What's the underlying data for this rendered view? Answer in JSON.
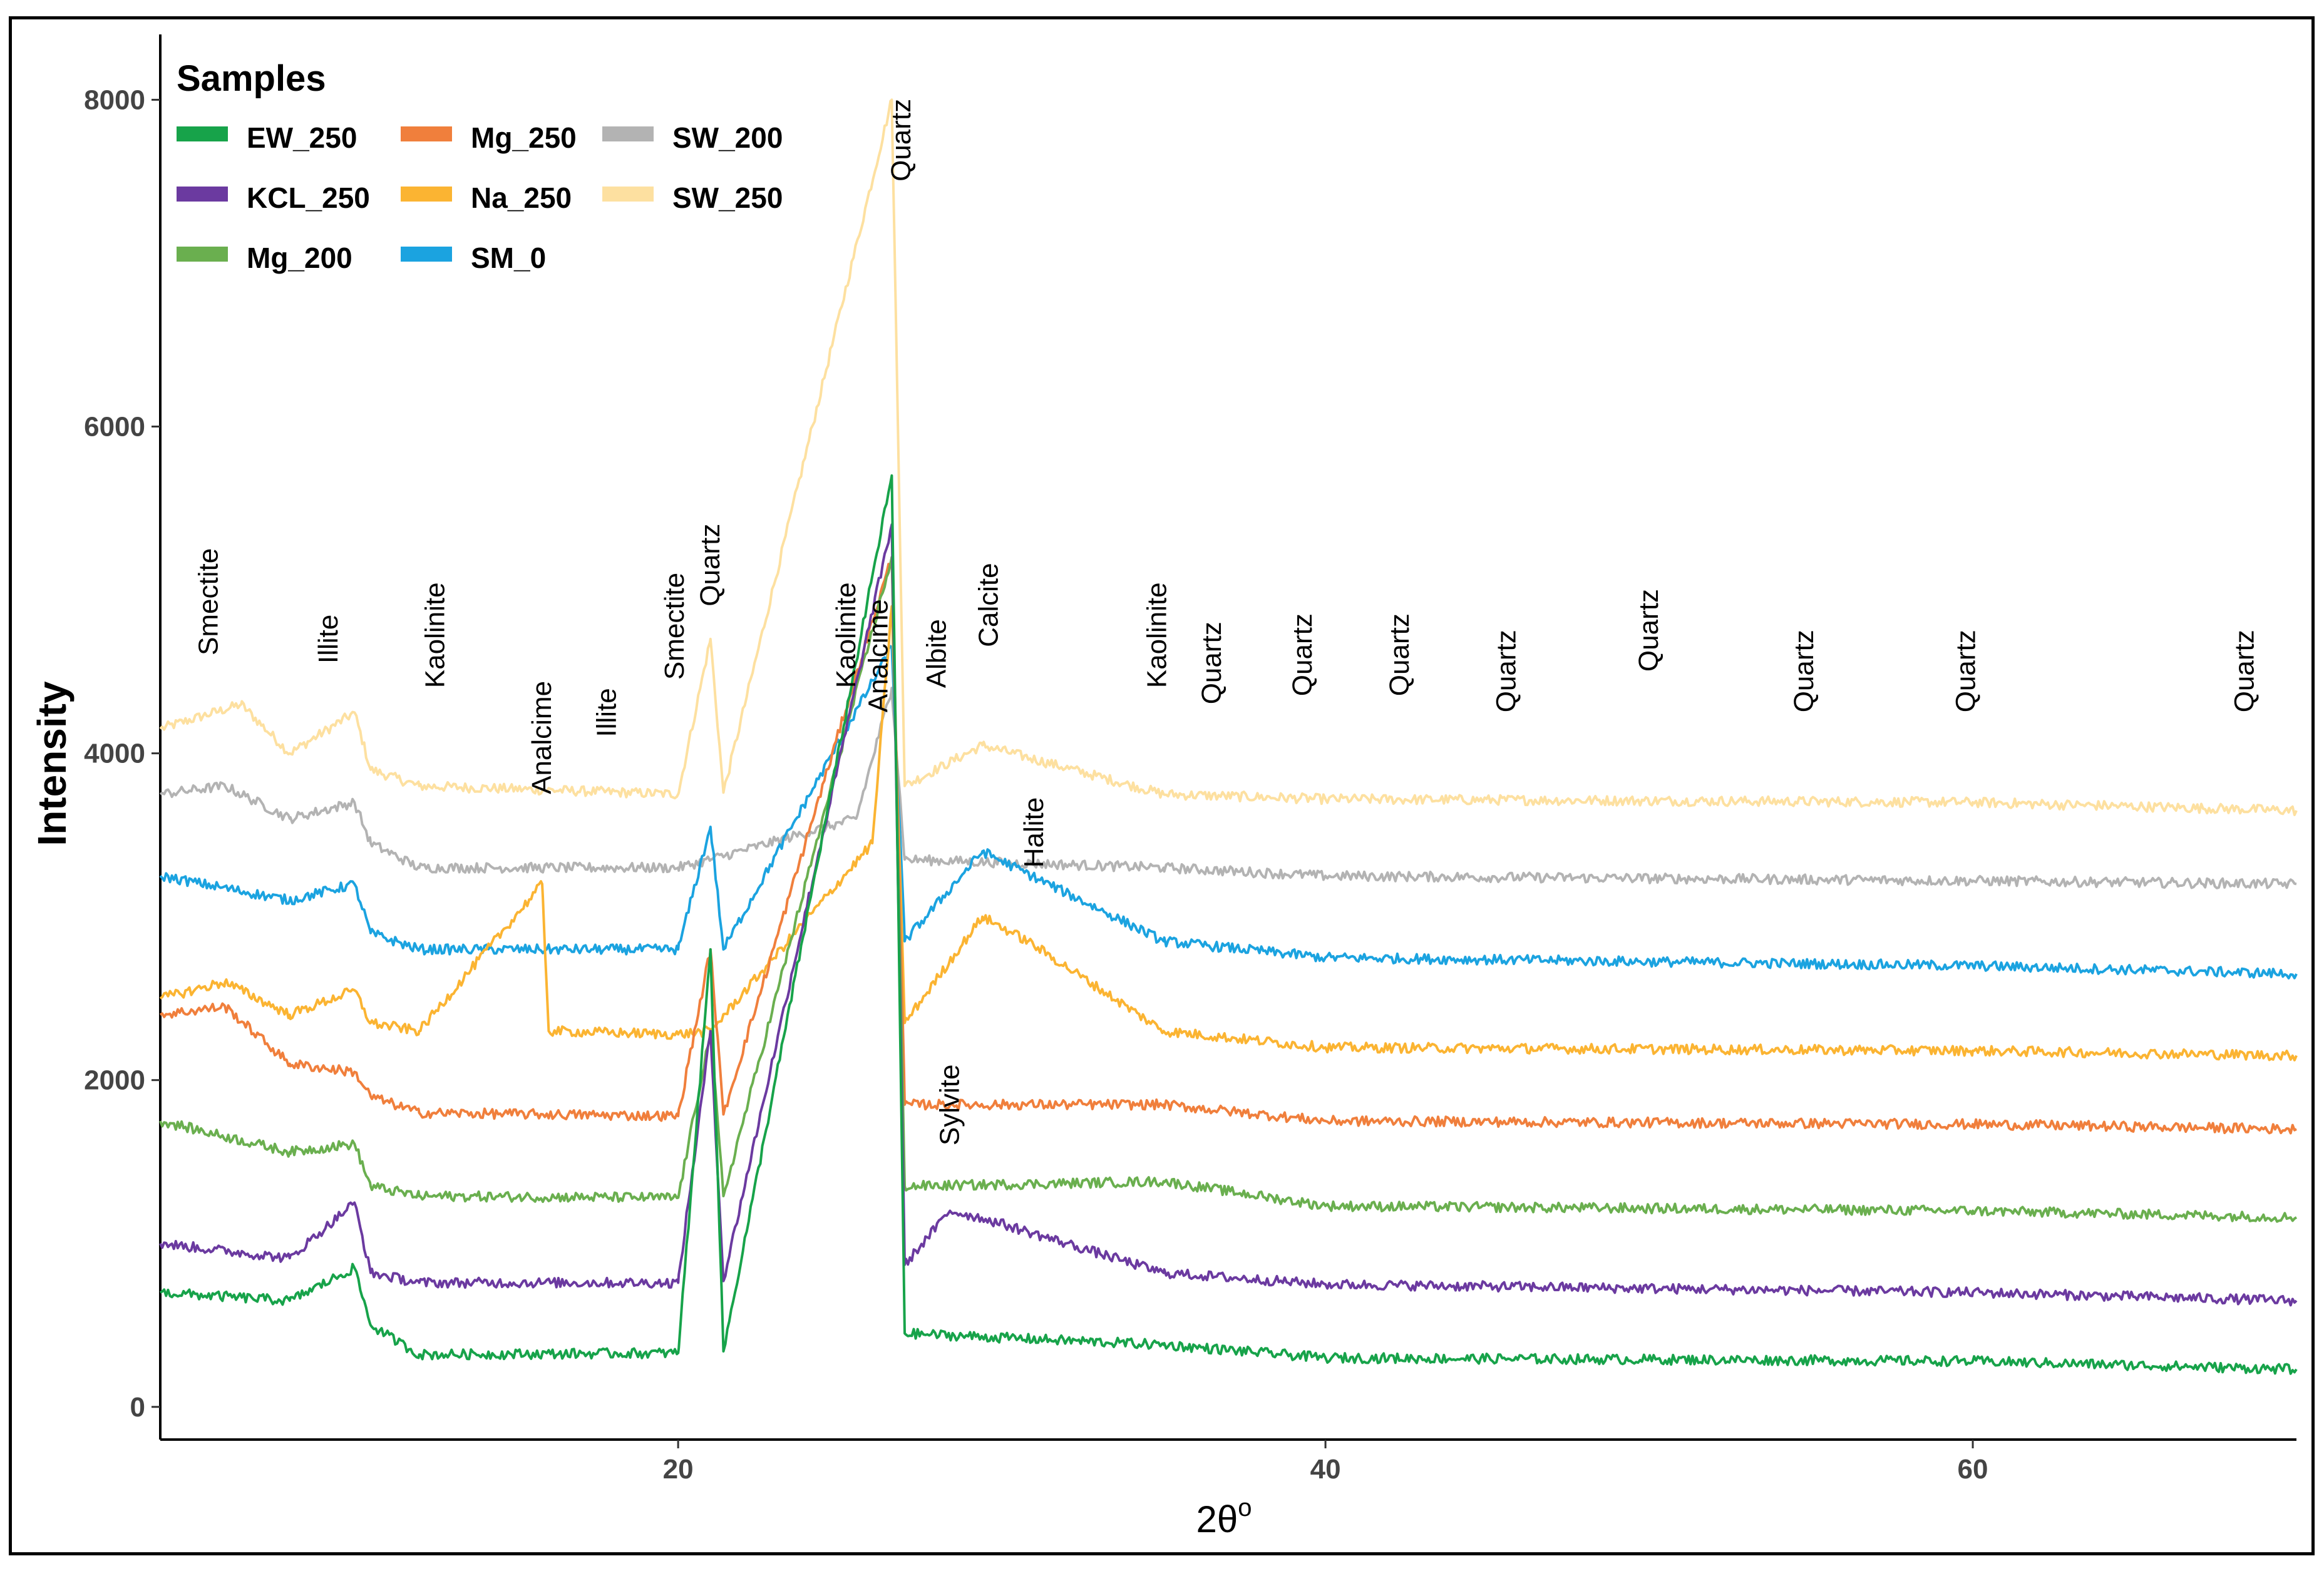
{
  "chart_data": {
    "type": "line",
    "title": "",
    "xlabel": "2θ",
    "xlabel_sup": "o",
    "ylabel": "Intensity",
    "xlim": [
      4,
      70
    ],
    "ylim": [
      -200,
      8400
    ],
    "x_ticks": [
      20,
      40,
      60
    ],
    "y_ticks": [
      0,
      2000,
      4000,
      6000,
      8000
    ],
    "grid": false,
    "legend": {
      "title": "Samples",
      "position": "top-left",
      "entries": [
        "EW_250",
        "Mg_250",
        "SW_200",
        "KCL_250",
        "Na_250",
        "SW_250",
        "Mg_200",
        "SM_0"
      ]
    },
    "series": [
      {
        "name": "EW_250",
        "color": "#17a34a",
        "points": [
          [
            4,
            700
          ],
          [
            8,
            650
          ],
          [
            10,
            850
          ],
          [
            10.5,
            500
          ],
          [
            12,
            320
          ],
          [
            20,
            330
          ],
          [
            21,
            2800
          ],
          [
            21.4,
            340
          ],
          [
            26.6,
            5700
          ],
          [
            27,
            450
          ],
          [
            35,
            380
          ],
          [
            40,
            300
          ],
          [
            60,
            280
          ],
          [
            70,
            230
          ]
        ]
      },
      {
        "name": "KCL_250",
        "color": "#6b3aa0",
        "points": [
          [
            4,
            1000
          ],
          [
            8,
            910
          ],
          [
            10,
            1250
          ],
          [
            10.5,
            820
          ],
          [
            12,
            760
          ],
          [
            20,
            760
          ],
          [
            21,
            2300
          ],
          [
            21.4,
            770
          ],
          [
            26.6,
            5400
          ],
          [
            27,
            870
          ],
          [
            28.4,
            1200
          ],
          [
            29.5,
            1150
          ],
          [
            35,
            820
          ],
          [
            40,
            750
          ],
          [
            60,
            700
          ],
          [
            70,
            650
          ]
        ]
      },
      {
        "name": "Mg_200",
        "color": "#6aaf4f",
        "points": [
          [
            4,
            1750
          ],
          [
            8,
            1560
          ],
          [
            10,
            1610
          ],
          [
            10.5,
            1350
          ],
          [
            12,
            1290
          ],
          [
            20,
            1280
          ],
          [
            21,
            2300
          ],
          [
            21.4,
            1290
          ],
          [
            26.6,
            5200
          ],
          [
            27,
            1350
          ],
          [
            35,
            1380
          ],
          [
            40,
            1230
          ],
          [
            60,
            1200
          ],
          [
            70,
            1160
          ]
        ]
      },
      {
        "name": "Mg_250",
        "color": "#f07f3c",
        "points": [
          [
            4,
            2400
          ],
          [
            6,
            2450
          ],
          [
            8,
            2100
          ],
          [
            10,
            2050
          ],
          [
            10.5,
            1900
          ],
          [
            12,
            1800
          ],
          [
            20,
            1780
          ],
          [
            21,
            2800
          ],
          [
            21.4,
            1790
          ],
          [
            26.6,
            5200
          ],
          [
            27,
            1850
          ],
          [
            35,
            1850
          ],
          [
            40,
            1750
          ],
          [
            60,
            1730
          ],
          [
            70,
            1700
          ]
        ]
      },
      {
        "name": "Na_250",
        "color": "#fbb432",
        "points": [
          [
            4,
            2500
          ],
          [
            6,
            2600
          ],
          [
            8,
            2400
          ],
          [
            10,
            2550
          ],
          [
            10.5,
            2350
          ],
          [
            12,
            2300
          ],
          [
            15.8,
            3200
          ],
          [
            16,
            2300
          ],
          [
            20,
            2280
          ],
          [
            21,
            2300
          ],
          [
            26,
            3450
          ],
          [
            26.6,
            4900
          ],
          [
            27,
            2350
          ],
          [
            29.4,
            3000
          ],
          [
            30.8,
            2850
          ],
          [
            35,
            2300
          ],
          [
            40,
            2200
          ],
          [
            60,
            2180
          ],
          [
            70,
            2150
          ]
        ]
      },
      {
        "name": "SM_0",
        "color": "#1ba3e0",
        "points": [
          [
            4,
            3250
          ],
          [
            8,
            3100
          ],
          [
            10,
            3200
          ],
          [
            10.5,
            2900
          ],
          [
            12,
            2800
          ],
          [
            20,
            2800
          ],
          [
            21,
            3550
          ],
          [
            21.4,
            2800
          ],
          [
            26.6,
            4650
          ],
          [
            27,
            2850
          ],
          [
            29.4,
            3400
          ],
          [
            35,
            2850
          ],
          [
            40,
            2750
          ],
          [
            60,
            2700
          ],
          [
            70,
            2650
          ]
        ]
      },
      {
        "name": "SW_200",
        "color": "#b3b3b3",
        "points": [
          [
            4,
            3750
          ],
          [
            6,
            3800
          ],
          [
            8,
            3600
          ],
          [
            10,
            3700
          ],
          [
            10.5,
            3450
          ],
          [
            12,
            3300
          ],
          [
            20,
            3300
          ],
          [
            21,
            3350
          ],
          [
            25.5,
            3600
          ],
          [
            26.6,
            4400
          ],
          [
            27,
            3350
          ],
          [
            35,
            3300
          ],
          [
            40,
            3250
          ],
          [
            60,
            3220
          ],
          [
            70,
            3200
          ]
        ]
      },
      {
        "name": "SW_250",
        "color": "#fde0a0",
        "points": [
          [
            4,
            4150
          ],
          [
            6.5,
            4300
          ],
          [
            8,
            4000
          ],
          [
            10,
            4250
          ],
          [
            10.5,
            3900
          ],
          [
            12,
            3800
          ],
          [
            20,
            3750
          ],
          [
            21,
            4700
          ],
          [
            21.4,
            3760
          ],
          [
            26.6,
            8000
          ],
          [
            27,
            3800
          ],
          [
            29.4,
            4050
          ],
          [
            35,
            3750
          ],
          [
            40,
            3720
          ],
          [
            60,
            3700
          ],
          [
            70,
            3650
          ]
        ]
      }
    ],
    "annotations": [
      {
        "text": "Smectite",
        "x": 5.5,
        "y": 4600
      },
      {
        "text": "Illite",
        "x": 9.2,
        "y": 4550
      },
      {
        "text": "Kaolinite",
        "x": 12.5,
        "y": 4400
      },
      {
        "text": "Analcime",
        "x": 15.8,
        "y": 3750
      },
      {
        "text": "Illite",
        "x": 17.8,
        "y": 4100
      },
      {
        "text": "Smectite",
        "x": 19.9,
        "y": 4450
      },
      {
        "text": "Quartz",
        "x": 21,
        "y": 4900
      },
      {
        "text": "Kaolinite",
        "x": 25.2,
        "y": 4400
      },
      {
        "text": "Analcime",
        "x": 26.2,
        "y": 4250
      },
      {
        "text": "Albite",
        "x": 28,
        "y": 4400
      },
      {
        "text": "Calcite",
        "x": 29.6,
        "y": 4650
      },
      {
        "text": "Halite",
        "x": 31,
        "y": 3300
      },
      {
        "text": "Kaolinite",
        "x": 34.8,
        "y": 4400
      },
      {
        "text": "Quartz",
        "x": 36.5,
        "y": 4300
      },
      {
        "text": "Quartz",
        "x": 39.3,
        "y": 4350
      },
      {
        "text": "Quartz",
        "x": 42.3,
        "y": 4350
      },
      {
        "text": "Quartz",
        "x": 45.6,
        "y": 4250
      },
      {
        "text": "Quartz",
        "x": 50,
        "y": 4500
      },
      {
        "text": "Quartz",
        "x": 54.8,
        "y": 4250
      },
      {
        "text": "Quartz",
        "x": 59.8,
        "y": 4250
      },
      {
        "text": "Quartz",
        "x": 68.4,
        "y": 4250
      },
      {
        "text": "Quartz",
        "x": 26.9,
        "y": 7500
      },
      {
        "text": "Sylvite",
        "x": 28.4,
        "y": 1600
      }
    ]
  }
}
